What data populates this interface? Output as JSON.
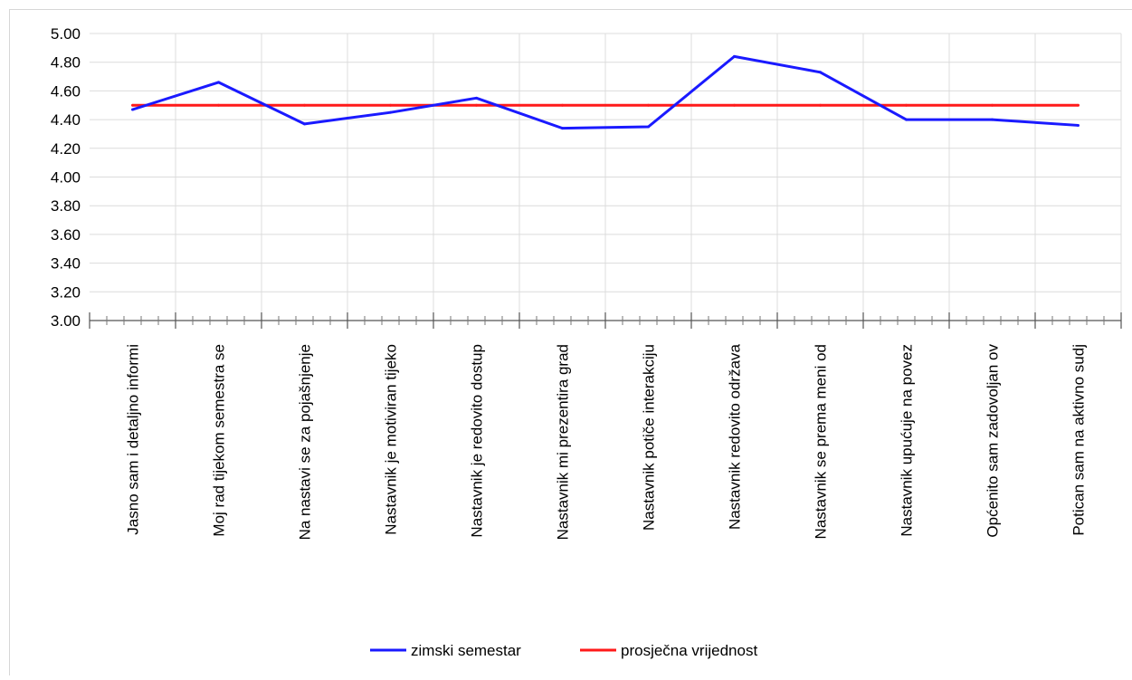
{
  "chart_data": {
    "type": "line",
    "title": "",
    "xlabel": "",
    "ylabel": "",
    "ylim": [
      3.0,
      5.0
    ],
    "yticks": [
      "3.00",
      "3.20",
      "3.40",
      "3.60",
      "3.80",
      "4.00",
      "4.20",
      "4.40",
      "4.60",
      "4.80",
      "5.00"
    ],
    "grid": true,
    "legend_position": "bottom",
    "categories": [
      "Jasno sam i detaljno informi",
      "Moj rad tijekom semestra se",
      "Na nastavi se za pojašnjenje",
      "Nastavnik je motiviran tijeko",
      "Nastavnik je redovito dostup",
      "Nastavnik mi prezentira grad",
      "Nastavnik potiče interakciju",
      "Nastavnik redovito održava",
      "Nastavnik se prema meni od",
      "Nastavnik upućuje na povez",
      "Općenito sam zadovoljan ov",
      "Potican sam na aktivno sudj"
    ],
    "series": [
      {
        "name": "zimski semestar",
        "color": "#1a1aff",
        "values": [
          4.47,
          4.66,
          4.37,
          4.45,
          4.55,
          4.34,
          4.35,
          4.84,
          4.73,
          4.4,
          4.4,
          4.36
        ]
      },
      {
        "name": "prosječna vrijednost",
        "color": "#ff1a1a",
        "values": [
          4.5,
          4.5,
          4.5,
          4.5,
          4.5,
          4.5,
          4.5,
          4.5,
          4.5,
          4.5,
          4.5,
          4.5
        ]
      }
    ]
  }
}
